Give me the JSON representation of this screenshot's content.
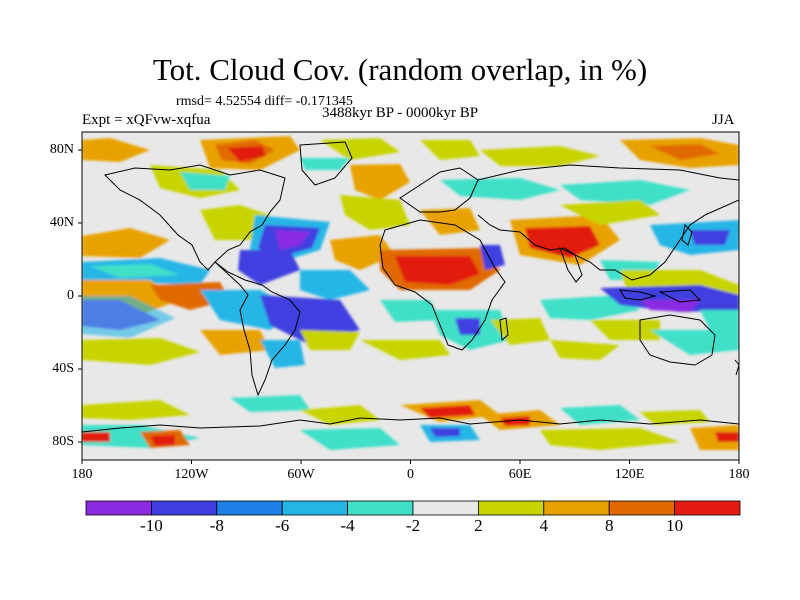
{
  "title": "Tot. Cloud Cov. (random overlap, in %)",
  "stats": "rmsd= 4.52554 diff= -0.171345",
  "period": "3488kyr BP - 0000kyr BP",
  "experiment": "Expt = xQFvw-xqfua",
  "season": "JJA",
  "x_ticks": [
    "180",
    "120W",
    "60W",
    "0",
    "60E",
    "120E",
    "180"
  ],
  "y_ticks": [
    "80N",
    "40N",
    "0",
    "40S",
    "80S"
  ],
  "colorbar": {
    "tick_labels": [
      "-10",
      "-8",
      "-6",
      "-4",
      "-2",
      "2",
      "4",
      "8",
      "10"
    ],
    "colors": [
      "#8a2be2",
      "#3f3fe0",
      "#1e7fe6",
      "#25b6e6",
      "#3fe0c8",
      "#e8e8e8",
      "#c8d400",
      "#e8a200",
      "#e06a00",
      "#e21a10"
    ]
  }
}
